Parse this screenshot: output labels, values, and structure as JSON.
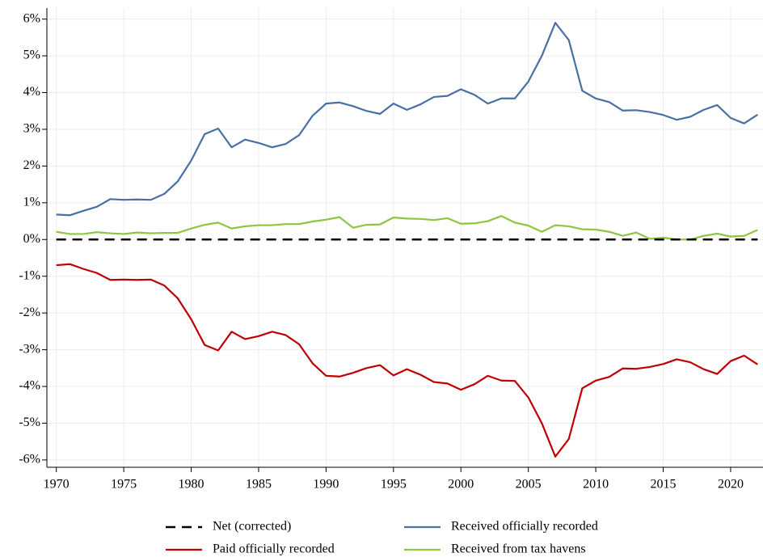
{
  "chart_data": {
    "type": "line",
    "x": [
      1970,
      1971,
      1972,
      1973,
      1974,
      1975,
      1976,
      1977,
      1978,
      1979,
      1980,
      1981,
      1982,
      1983,
      1984,
      1985,
      1986,
      1987,
      1988,
      1989,
      1990,
      1991,
      1992,
      1993,
      1994,
      1995,
      1996,
      1997,
      1998,
      1999,
      2000,
      2001,
      2002,
      2003,
      2004,
      2005,
      2006,
      2007,
      2008,
      2009,
      2010,
      2011,
      2012,
      2013,
      2014,
      2015,
      2016,
      2017,
      2018,
      2019,
      2020,
      2021,
      2022
    ],
    "series": [
      {
        "name": "Net (corrected)",
        "color": "#000000",
        "dashed": true,
        "values": [
          0,
          0,
          0,
          0,
          0,
          0,
          0,
          0,
          0,
          0,
          0,
          0,
          0,
          0,
          0,
          0,
          0,
          0,
          0,
          0,
          0,
          0,
          0,
          0,
          0,
          0,
          0,
          0,
          0,
          0,
          0,
          0,
          0,
          0,
          0,
          0,
          0,
          0,
          0,
          0,
          0,
          0,
          0,
          0,
          0,
          0,
          0,
          0,
          0,
          0,
          0,
          0,
          0
        ]
      },
      {
        "name": "Received officially recorded",
        "color": "#4a6fa5",
        "values": [
          0.68,
          0.66,
          0.78,
          0.89,
          1.1,
          1.08,
          1.09,
          1.08,
          1.24,
          1.58,
          2.15,
          2.87,
          3.02,
          2.51,
          2.72,
          2.63,
          2.51,
          2.6,
          2.84,
          3.37,
          3.7,
          3.73,
          3.63,
          3.5,
          3.42,
          3.7,
          3.53,
          3.68,
          3.88,
          3.91,
          4.09,
          3.94,
          3.7,
          3.84,
          3.84,
          4.3,
          5.0,
          5.9,
          5.43,
          4.05,
          3.84,
          3.74,
          3.51,
          3.52,
          3.47,
          3.39,
          3.26,
          3.34,
          3.53,
          3.66,
          3.31,
          3.16,
          3.4
        ]
      },
      {
        "name": "Paid officially recorded",
        "color": "#c00000",
        "values": [
          -0.7,
          -0.67,
          -0.8,
          -0.91,
          -1.1,
          -1.09,
          -1.1,
          -1.09,
          -1.25,
          -1.6,
          -2.17,
          -2.87,
          -3.02,
          -2.51,
          -2.71,
          -2.63,
          -2.51,
          -2.6,
          -2.85,
          -3.37,
          -3.71,
          -3.73,
          -3.63,
          -3.5,
          -3.42,
          -3.7,
          -3.53,
          -3.68,
          -3.88,
          -3.92,
          -4.09,
          -3.94,
          -3.71,
          -3.84,
          -3.85,
          -4.3,
          -5.0,
          -5.91,
          -5.43,
          -4.05,
          -3.84,
          -3.74,
          -3.51,
          -3.52,
          -3.47,
          -3.39,
          -3.26,
          -3.34,
          -3.53,
          -3.66,
          -3.31,
          -3.16,
          -3.4
        ]
      },
      {
        "name": "Received from tax havens",
        "color": "#8dc63f",
        "values": [
          0.21,
          0.15,
          0.15,
          0.2,
          0.17,
          0.15,
          0.19,
          0.17,
          0.18,
          0.18,
          0.3,
          0.4,
          0.46,
          0.3,
          0.36,
          0.39,
          0.39,
          0.42,
          0.42,
          0.49,
          0.54,
          0.61,
          0.32,
          0.4,
          0.41,
          0.6,
          0.57,
          0.56,
          0.53,
          0.58,
          0.43,
          0.44,
          0.5,
          0.64,
          0.46,
          0.38,
          0.21,
          0.39,
          0.36,
          0.28,
          0.27,
          0.21,
          0.1,
          0.19,
          0.02,
          0.05,
          0.0,
          0.0,
          0.1,
          0.16,
          0.08,
          0.1,
          0.26
        ]
      }
    ],
    "xlim": [
      1969.3,
      2022.4
    ],
    "xticks": [
      1970,
      1975,
      1980,
      1985,
      1990,
      1995,
      2000,
      2005,
      2010,
      2015,
      2020
    ],
    "ylim": [
      -6.2,
      6.3
    ],
    "yticks": [
      {
        "value": -6,
        "label": "-6%"
      },
      {
        "value": -5,
        "label": "-5%"
      },
      {
        "value": -4,
        "label": "-4%"
      },
      {
        "value": -3,
        "label": "-3%"
      },
      {
        "value": -2,
        "label": "-2%"
      },
      {
        "value": -1,
        "label": "-1%"
      },
      {
        "value": 0,
        "label": "0%"
      },
      {
        "value": 1,
        "label": "1%"
      },
      {
        "value": 2,
        "label": "2%"
      },
      {
        "value": 3,
        "label": "3%"
      },
      {
        "value": 4,
        "label": "4%"
      },
      {
        "value": 5,
        "label": "5%"
      },
      {
        "value": 6,
        "label": "6%"
      }
    ],
    "grid": true
  }
}
